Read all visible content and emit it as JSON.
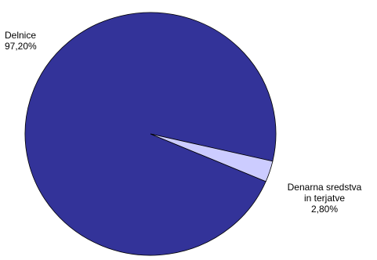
{
  "chart_data": {
    "type": "pie",
    "slices": [
      {
        "label": "Delnice",
        "value_label": "97,20%",
        "value": 97.2,
        "color": "#333399"
      },
      {
        "label_lines": [
          "Denarna sredstva",
          "in terjatve"
        ],
        "value_label": "2,80%",
        "value": 2.8,
        "color": "#ccccff"
      }
    ],
    "edge_color": "#000000"
  }
}
